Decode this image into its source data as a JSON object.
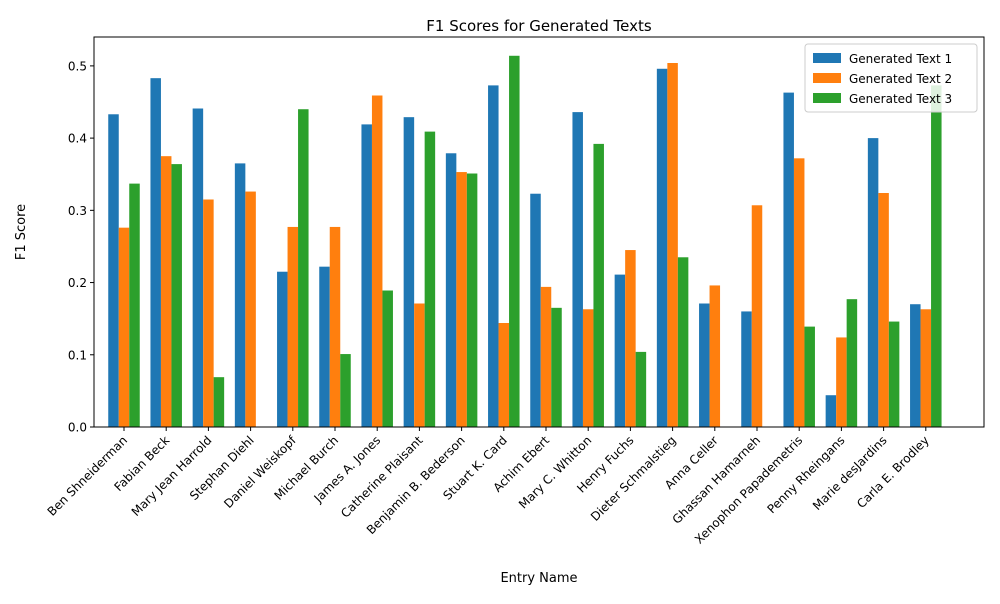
{
  "chart_data": {
    "type": "bar",
    "title": "F1 Scores for Generated Texts",
    "xlabel": "Entry Name",
    "ylabel": "F1 Score",
    "ylim": [
      0,
      0.54
    ],
    "yticks": [
      0.0,
      0.1,
      0.2,
      0.3,
      0.4,
      0.5
    ],
    "ytick_labels": [
      "0.0",
      "0.1",
      "0.2",
      "0.3",
      "0.4",
      "0.5"
    ],
    "grid": false,
    "legend_position": "top-right",
    "categories": [
      "Ben Shneiderman",
      "Fabian Beck",
      "Mary Jean Harrold",
      "Stephan Diehl",
      "Daniel Weiskopf",
      "Michael Burch",
      "James A. Jones",
      "Catherine Plaisant",
      "Benjamin B. Bederson",
      "Stuart K. Card",
      "Achim Ebert",
      "Mary C. Whitton",
      "Henry Fuchs",
      "Dieter Schmalstieg",
      "Anna Celler",
      "Ghassan Hamarneh",
      "Xenophon Papademetris",
      "Penny Rheingans",
      "Marie desJardins",
      "Carla E. Brodley"
    ],
    "series": [
      {
        "name": "Generated Text 1",
        "color": "#1f77b4",
        "values": [
          0.433,
          0.483,
          0.441,
          0.365,
          0.215,
          0.222,
          0.419,
          0.429,
          0.379,
          0.473,
          0.323,
          0.436,
          0.211,
          0.496,
          0.171,
          0.16,
          0.463,
          0.044,
          0.4,
          0.17
        ]
      },
      {
        "name": "Generated Text 2",
        "color": "#ff7f0e",
        "values": [
          0.276,
          0.375,
          0.315,
          0.326,
          0.277,
          0.277,
          0.459,
          0.171,
          0.353,
          0.144,
          0.194,
          0.163,
          0.245,
          0.504,
          0.196,
          0.307,
          0.372,
          0.124,
          0.324,
          0.163
        ]
      },
      {
        "name": "Generated Text 3",
        "color": "#2ca02c",
        "values": [
          0.337,
          0.364,
          0.069,
          0.0,
          0.44,
          0.101,
          0.189,
          0.409,
          0.351,
          0.514,
          0.165,
          0.392,
          0.104,
          0.235,
          0.0,
          0.0,
          0.139,
          0.177,
          0.146,
          0.473
        ]
      }
    ]
  }
}
